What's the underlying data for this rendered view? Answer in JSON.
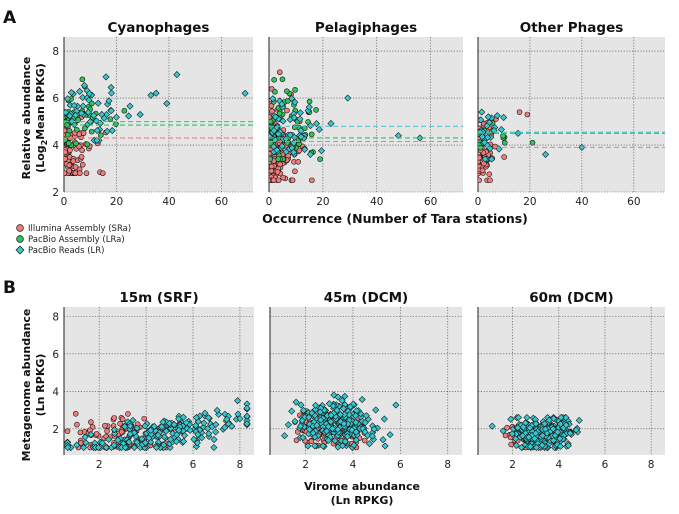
{
  "figure": {
    "panel_a_letter": "A",
    "panel_b_letter": "B",
    "a_xlabel": "Occurrence (Number of Tara stations)",
    "a_ylabel_line1": "Relative abundance",
    "a_ylabel_line2": "(Log",
    "a_ylabel_sub": "2",
    "a_ylabel_line2b": "Mean RPKG)",
    "b_xlabel_line1": "Virome abundance",
    "b_xlabel_line2": "(Ln RPKG)",
    "b_ylabel_line1": "Metagenome abundance",
    "b_ylabel_line2": "(Ln RPKG)"
  },
  "legend": [
    {
      "key": "sra",
      "label": "Illumina Assembly (SRa)",
      "color": "#f07d7d",
      "shape": "circle"
    },
    {
      "key": "lra",
      "label": "PacBio Assembly (LRa)",
      "color": "#2ec35b",
      "shape": "circle"
    },
    {
      "key": "lr",
      "label": "PacBio Reads (LR)",
      "color": "#36c8d0",
      "shape": "diamond"
    }
  ],
  "colors": {
    "sra": "#f07d7d",
    "lra": "#2ec35b",
    "lr": "#36c8d0",
    "panel_bg": "#e5e5e5",
    "grid": "#444444",
    "edge": "#1a1a1a"
  },
  "chart_data": [
    {
      "type": "scatter",
      "panel": "A",
      "title": "Cyanophages",
      "xlim": [
        0,
        72
      ],
      "ylim": [
        2,
        8.6
      ],
      "xticks": [
        0,
        20,
        40,
        60
      ],
      "yticks": [
        2,
        4,
        6,
        8
      ],
      "show_yticks": true,
      "mean_lines": {
        "sra": 4.3,
        "lra": 4.85,
        "lr": 5.0
      },
      "series": [
        {
          "name": "sra",
          "seed": 11,
          "n": 90,
          "x_center": 4,
          "x_spread": 5,
          "y_center": 3.9,
          "y_spread": 0.9,
          "y_min": 2.8,
          "y_max": 5.2
        },
        {
          "name": "lra",
          "seed": 12,
          "n": 45,
          "x_center": 6,
          "x_spread": 6,
          "y_center": 5.3,
          "y_spread": 0.7,
          "y_min": 4.0,
          "y_max": 6.8
        },
        {
          "name": "lr",
          "seed": 13,
          "n": 55,
          "x_center": 14,
          "x_spread": 14,
          "y_center": 5.2,
          "y_spread": 0.6,
          "y_min": 4.2,
          "y_max": 7.0
        }
      ],
      "highlight_points": [
        {
          "series": "lr",
          "x": 69,
          "y": 6.2
        },
        {
          "series": "lr",
          "x": 43,
          "y": 7.0
        },
        {
          "series": "lr",
          "x": 16,
          "y": 6.9
        },
        {
          "series": "lra",
          "x": 7,
          "y": 6.8
        },
        {
          "series": "sra",
          "x": 2,
          "y": 2.9
        }
      ]
    },
    {
      "type": "scatter",
      "panel": "A",
      "title": "Pelagiphages",
      "xlim": [
        0,
        72
      ],
      "ylim": [
        2,
        8.6
      ],
      "xticks": [
        0,
        20,
        40,
        60
      ],
      "yticks": [
        2,
        4,
        6,
        8
      ],
      "show_yticks": false,
      "mean_lines": {
        "sra": 4.15,
        "lra": 4.3,
        "lr": 4.8
      },
      "series": [
        {
          "name": "sra",
          "seed": 21,
          "n": 150,
          "x_center": 3,
          "x_spread": 5,
          "y_center": 3.8,
          "y_spread": 0.9,
          "y_min": 2.5,
          "y_max": 7.1
        },
        {
          "name": "lra",
          "seed": 22,
          "n": 70,
          "x_center": 6,
          "x_spread": 8,
          "y_center": 4.6,
          "y_spread": 0.8,
          "y_min": 3.4,
          "y_max": 6.8
        },
        {
          "name": "lr",
          "seed": 23,
          "n": 60,
          "x_center": 12,
          "x_spread": 12,
          "y_center": 4.5,
          "y_spread": 0.6,
          "y_min": 3.6,
          "y_max": 6.5
        }
      ],
      "highlight_points": [
        {
          "series": "lr",
          "x": 48,
          "y": 4.4
        },
        {
          "series": "lr",
          "x": 56,
          "y": 4.3
        },
        {
          "series": "lra",
          "x": 5,
          "y": 6.8
        },
        {
          "series": "sra",
          "x": 4,
          "y": 7.1
        }
      ]
    },
    {
      "type": "scatter",
      "panel": "A",
      "title": "Other Phages",
      "xlim": [
        0,
        72
      ],
      "ylim": [
        2,
        8.6
      ],
      "xticks": [
        0,
        20,
        40,
        60
      ],
      "yticks": [
        2,
        4,
        6,
        8
      ],
      "show_yticks": false,
      "mean_lines": {
        "sra": 3.9,
        "lra": 4.5,
        "lr": 4.55
      },
      "series": [
        {
          "name": "sra",
          "seed": 31,
          "n": 70,
          "x_center": 3,
          "x_spread": 4,
          "y_center": 3.6,
          "y_spread": 0.7,
          "y_min": 2.5,
          "y_max": 5.5
        },
        {
          "name": "lra",
          "seed": 32,
          "n": 12,
          "x_center": 6,
          "x_spread": 6,
          "y_center": 4.4,
          "y_spread": 0.5,
          "y_min": 3.6,
          "y_max": 5.3
        },
        {
          "name": "lr",
          "seed": 33,
          "n": 28,
          "x_center": 5,
          "x_spread": 6,
          "y_center": 4.3,
          "y_spread": 0.6,
          "y_min": 3.4,
          "y_max": 5.5
        }
      ],
      "highlight_points": [
        {
          "series": "sra",
          "x": 16,
          "y": 5.4
        },
        {
          "series": "sra",
          "x": 19,
          "y": 5.3
        },
        {
          "series": "lr",
          "x": 40,
          "y": 3.9
        },
        {
          "series": "lr",
          "x": 26,
          "y": 3.6
        },
        {
          "series": "lra",
          "x": 21,
          "y": 4.1
        }
      ]
    },
    {
      "type": "scatter",
      "panel": "B",
      "title": "15m (SRF)",
      "xlim": [
        0.5,
        8.6
      ],
      "ylim": [
        0.6,
        8.5
      ],
      "xticks": [
        2,
        4,
        6,
        8
      ],
      "yticks": [
        2,
        4,
        6,
        8
      ],
      "show_yticks": true,
      "series": [
        {
          "name": "sra",
          "seed": 41,
          "n": 90,
          "x_center": 3.2,
          "x_spread": 1.3,
          "y_center": 1.7,
          "y_spread": 0.45,
          "y_min": 1.0,
          "y_max": 2.9
        },
        {
          "name": "lr",
          "seed": 42,
          "n": 200,
          "x_center": 4.6,
          "x_spread": 2.0,
          "y_center": 1.7,
          "y_spread": 0.5,
          "y_min": 1.0,
          "y_max": 3.6,
          "trend": 0.22
        }
      ],
      "highlight_points": [
        {
          "series": "lr",
          "x": 7.9,
          "y": 3.5
        },
        {
          "series": "lr",
          "x": 8.3,
          "y": 3.1
        },
        {
          "series": "sra",
          "x": 1.0,
          "y": 2.8
        }
      ]
    },
    {
      "type": "scatter",
      "panel": "B",
      "title": "45m (DCM)",
      "xlim": [
        0.5,
        8.6
      ],
      "ylim": [
        0.6,
        8.5
      ],
      "xticks": [
        2,
        4,
        6,
        8
      ],
      "yticks": [
        2,
        4,
        6,
        8
      ],
      "show_yticks": false,
      "series": [
        {
          "name": "sra",
          "seed": 51,
          "n": 110,
          "x_center": 2.9,
          "x_spread": 0.8,
          "y_center": 2.0,
          "y_spread": 0.5,
          "y_min": 1.0,
          "y_max": 3.0
        },
        {
          "name": "lr",
          "seed": 52,
          "n": 260,
          "x_center": 3.3,
          "x_spread": 0.8,
          "y_center": 2.3,
          "y_spread": 0.6,
          "y_min": 1.0,
          "y_max": 3.8
        }
      ],
      "highlight_points": []
    },
    {
      "type": "scatter",
      "panel": "B",
      "title": "60m (DCM)",
      "xlim": [
        0.5,
        8.6
      ],
      "ylim": [
        0.6,
        8.5
      ],
      "xticks": [
        2,
        4,
        6,
        8
      ],
      "yticks": [
        2,
        4,
        6,
        8
      ],
      "show_yticks": false,
      "series": [
        {
          "name": "sra",
          "seed": 61,
          "n": 80,
          "x_center": 2.8,
          "x_spread": 0.6,
          "y_center": 1.6,
          "y_spread": 0.35,
          "y_min": 1.0,
          "y_max": 2.3
        },
        {
          "name": "lr",
          "seed": 62,
          "n": 220,
          "x_center": 3.3,
          "x_spread": 0.7,
          "y_center": 1.8,
          "y_spread": 0.45,
          "y_min": 1.0,
          "y_max": 2.6
        }
      ],
      "highlight_points": []
    }
  ]
}
